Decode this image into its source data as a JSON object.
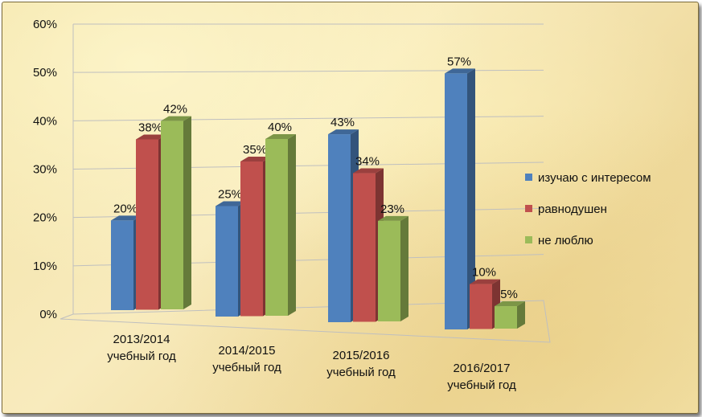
{
  "chart_data": {
    "type": "bar",
    "categories": [
      [
        "2013/2014",
        "учебный год"
      ],
      [
        "2014/2015",
        "учебный год"
      ],
      [
        "2015/2016",
        "учебный год"
      ],
      [
        "2016/2017",
        "учебный год"
      ]
    ],
    "series": [
      {
        "name": "изучаю с интересом",
        "values": [
          20,
          25,
          43,
          57
        ],
        "labels": [
          "20%",
          "25%",
          "43%",
          "57%"
        ],
        "color": "#4f81bd"
      },
      {
        "name": "равнодушен",
        "values": [
          38,
          35,
          34,
          10
        ],
        "labels": [
          "38%",
          "35%",
          "34%",
          "10%"
        ],
        "color": "#c0504d"
      },
      {
        "name": "не люблю",
        "values": [
          42,
          40,
          23,
          5
        ],
        "labels": [
          "42%",
          "40%",
          "23%",
          "5%"
        ],
        "color": "#9bbb59"
      }
    ],
    "y_ticks": [
      "0%",
      "10%",
      "20%",
      "30%",
      "40%",
      "50%",
      "60%"
    ],
    "ylim": [
      0,
      60
    ],
    "grid": true,
    "legend_position": "right",
    "style": "3d-clustered-bar"
  }
}
